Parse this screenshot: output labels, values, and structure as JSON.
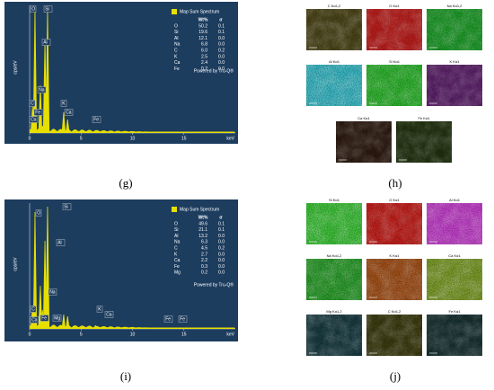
{
  "spectra": [
    {
      "panel_label": "(g)",
      "y_label": "cps/eV",
      "x_unit": "keV",
      "x_ticks": [
        0,
        5,
        10,
        15
      ],
      "peak_labels": [
        "O",
        "Si",
        "Al",
        "Na",
        "C",
        "Fe",
        "Ca",
        "K",
        "Ca",
        "Fe"
      ],
      "table": {
        "title": "Map Sum Spectrum",
        "header": [
          "Wt%",
          "σ"
        ],
        "rows": [
          [
            "O",
            "50.2",
            "0.1"
          ],
          [
            "Si",
            "19.6",
            "0.1"
          ],
          [
            "Al",
            "12.1",
            "0.0"
          ],
          [
            "Na",
            "6.8",
            "0.0"
          ],
          [
            "C",
            "6.0",
            "0.2"
          ],
          [
            "K",
            "2.5",
            "0.0"
          ],
          [
            "Ca",
            "2.4",
            "0.0"
          ],
          [
            "Fe",
            "0.2",
            "0.0"
          ]
        ],
        "footer": "Powered by Tru-Q®"
      }
    },
    {
      "panel_label": "(i)",
      "y_label": "cps/eV",
      "x_unit": "keV",
      "x_ticks": [
        0,
        5,
        10,
        15
      ],
      "peak_labels": [
        "O",
        "Si",
        "Al",
        "Na",
        "C",
        "Ca",
        "Fe",
        "Mg",
        "K",
        "Ca",
        "Fe",
        "Fe"
      ],
      "table": {
        "title": "Map Sum Spectrum",
        "header": [
          "Wt%",
          "σ"
        ],
        "rows": [
          [
            "O",
            "49.6",
            "0.1"
          ],
          [
            "Si",
            "21.1",
            "0.1"
          ],
          [
            "Al",
            "13.2",
            "0.0"
          ],
          [
            "Na",
            "6.3",
            "0.0"
          ],
          [
            "C",
            "4.5",
            "0.2"
          ],
          [
            "K",
            "2.7",
            "0.0"
          ],
          [
            "Ca",
            "2.2",
            "0.0"
          ],
          [
            "Fe",
            "0.3",
            "0.0"
          ],
          [
            "Mg",
            "0.2",
            "0.0"
          ]
        ],
        "footer": "Powered by Tru-Q®"
      }
    }
  ],
  "map_panels": [
    {
      "panel_label": "(h)",
      "maps": [
        {
          "label": "C Kα1,2",
          "color": "#4a4418"
        },
        {
          "label": "O Kα1",
          "color": "#b81e1c"
        },
        {
          "label": "Na Kα1,2",
          "color": "#1f9a2a"
        },
        {
          "label": "Al Kα1",
          "color": "#3ab6c2"
        },
        {
          "label": "Si Kα1",
          "color": "#2eb22e"
        },
        {
          "label": "K Kα1",
          "color": "#5a2068"
        },
        {
          "label": "Ca Kα1",
          "color": "#2c1a10"
        },
        {
          "label": "Fe Kα1",
          "color": "#20300e"
        }
      ]
    },
    {
      "panel_label": "(j)",
      "maps": [
        {
          "label": "Si Kα1",
          "color": "#3ec03a"
        },
        {
          "label": "O Kα1",
          "color": "#c0201c"
        },
        {
          "label": "Al Kα1",
          "color": "#c040c8"
        },
        {
          "label": "Na Kα1,2",
          "color": "#2a9a2a"
        },
        {
          "label": "K Kα1",
          "color": "#a0501a"
        },
        {
          "label": "Ca Kα1",
          "color": "#7a9a2a"
        },
        {
          "label": "Mg Kα1,2",
          "color": "#183a40"
        },
        {
          "label": "C Kα1,2",
          "color": "#3a3a10"
        },
        {
          "label": "Fe Kα1",
          "color": "#183030"
        }
      ]
    }
  ]
}
